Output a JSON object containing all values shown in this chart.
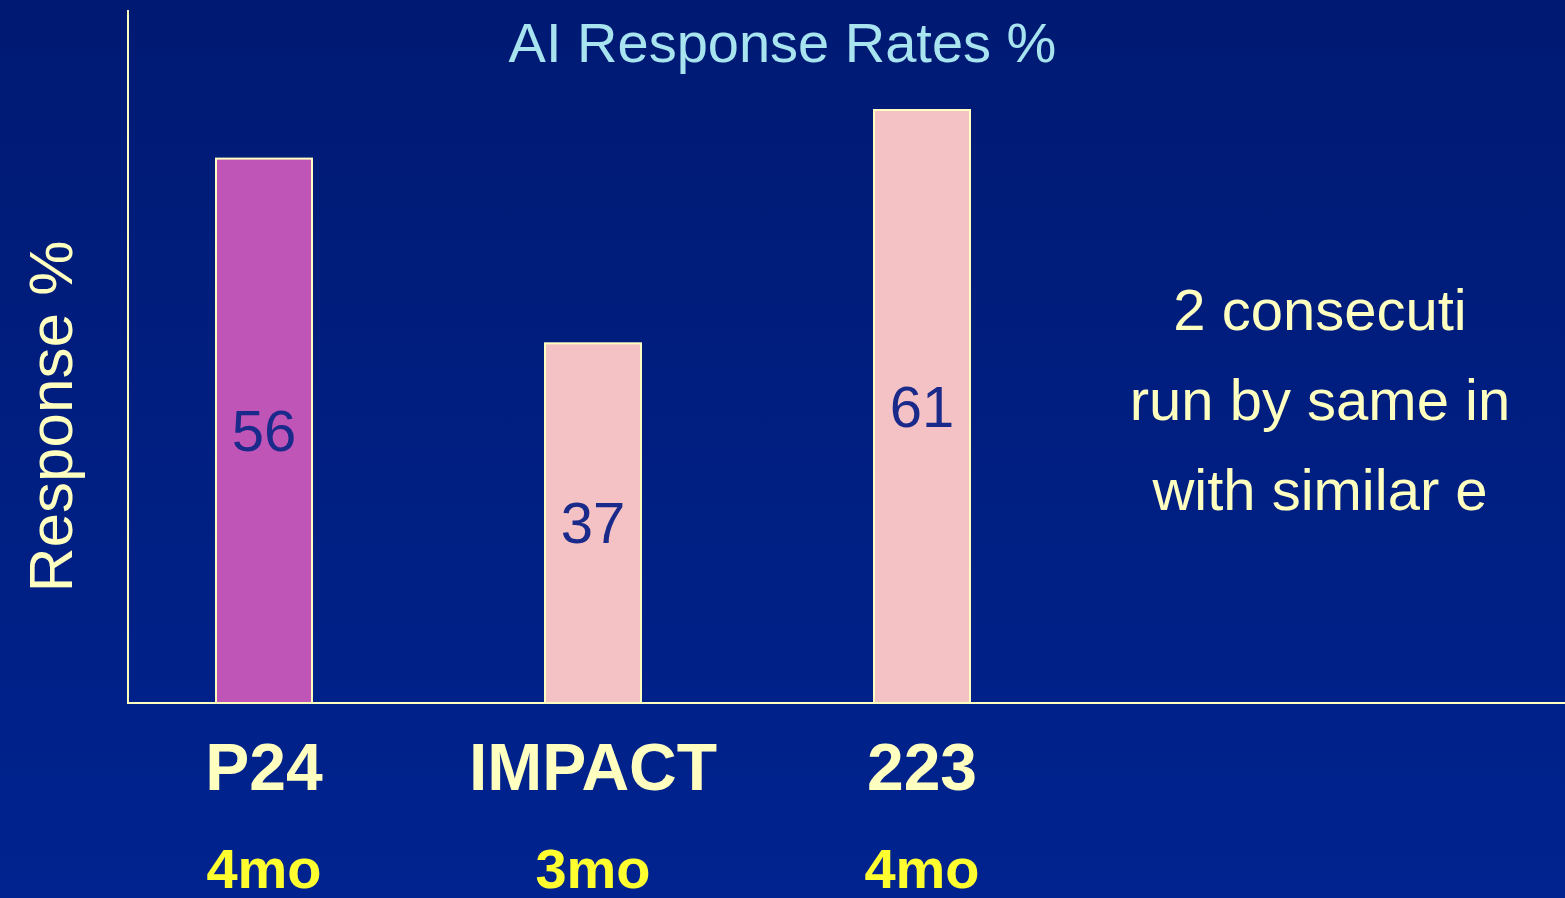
{
  "chart_data": {
    "type": "bar",
    "title": "AI Response Rates %",
    "ylabel": "Response %",
    "categories": [
      "P24",
      "IMPACT",
      "223"
    ],
    "values": [
      56,
      37,
      61
    ],
    "colors": [
      "#c055b8",
      "#f4c2c4",
      "#f4c2c4"
    ],
    "data_labels": true,
    "annotations": [
      "4mo",
      "3mo",
      "4mo",
      "2 consecuti",
      "run by same in",
      "with similar e"
    ]
  }
}
